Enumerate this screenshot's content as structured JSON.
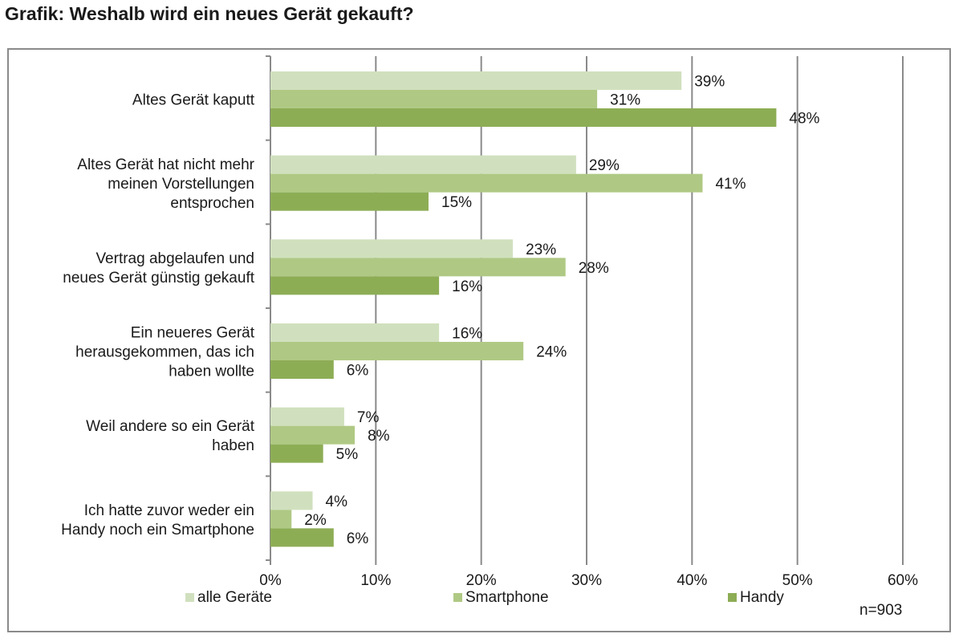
{
  "title": "Grafik: Weshalb wird ein neues Gerät gekauft?",
  "note": "n=903",
  "colors": {
    "alle_geraete": "#d0e0be",
    "smartphone": "#afc984",
    "handy": "#8dad55",
    "grid": "#8a8a8a",
    "frame": "#8a8a8a"
  },
  "chart_data": {
    "type": "bar",
    "orientation": "horizontal",
    "categories": [
      [
        "Altes Gerät kaputt"
      ],
      [
        "Altes Gerät hat nicht mehr",
        "meinen Vorstellungen",
        "entsprochen"
      ],
      [
        "Vertrag abgelaufen und",
        "neues Gerät günstig gekauft"
      ],
      [
        "Ein neueres Gerät",
        "herausgekommen, das ich",
        "haben wollte"
      ],
      [
        "Weil andere so ein Gerät",
        "haben"
      ],
      [
        "Ich hatte zuvor weder ein",
        "Handy noch ein Smartphone"
      ]
    ],
    "series": [
      {
        "name": "alle Geräte",
        "values": [
          39,
          29,
          23,
          16,
          7,
          4
        ],
        "labels": [
          "39%",
          "29%",
          "23%",
          "16%",
          "7%",
          "4%"
        ]
      },
      {
        "name": "Smartphone",
        "values": [
          31,
          41,
          28,
          24,
          8,
          2
        ],
        "labels": [
          "31%",
          "41%",
          "28%",
          "24%",
          "8%",
          "2%"
        ]
      },
      {
        "name": "Handy",
        "values": [
          48,
          15,
          16,
          6,
          5,
          6
        ],
        "labels": [
          "48%",
          "15%",
          "16%",
          "6%",
          "5%",
          "6%"
        ]
      }
    ],
    "xlim": [
      0,
      60
    ],
    "xticks": [
      0,
      10,
      20,
      30,
      40,
      50,
      60
    ],
    "xtick_labels": [
      "0%",
      "10%",
      "20%",
      "30%",
      "40%",
      "50%",
      "60%"
    ],
    "grid": true,
    "legend_position": "bottom"
  }
}
